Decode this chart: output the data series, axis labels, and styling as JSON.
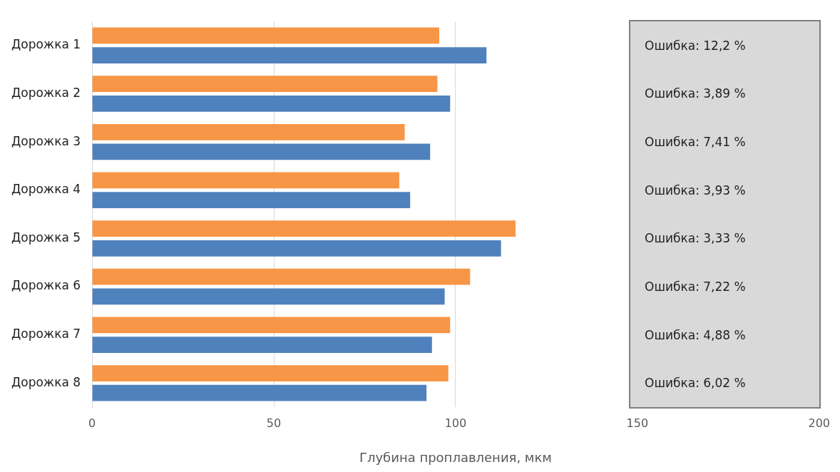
{
  "chart_data": {
    "type": "bar",
    "orientation": "horizontal",
    "xlabel": "Глубина проплавления, мкм",
    "categories": [
      "Дорожка 1",
      "Дорожка 2",
      "Дорожка 3",
      "Дорожка 4",
      "Дорожка 5",
      "Дорожка 6",
      "Дорожка 7",
      "Дорожка 8"
    ],
    "series": [
      {
        "color": "#f79646",
        "values": [
          95.5,
          95,
          86,
          84.5,
          116.5,
          104,
          98.5,
          98
        ]
      },
      {
        "color": "#4f81bd",
        "values": [
          108.5,
          98.5,
          93,
          87.5,
          112.5,
          97,
          93.5,
          92
        ]
      }
    ],
    "xlim": [
      0,
      200
    ],
    "xticks": [
      0,
      50,
      100,
      150,
      200
    ],
    "grid": "x",
    "legend": false,
    "annotations": [
      "Ошибка: 12,2 %",
      "Ошибка: 3,89 %",
      "Ошибка: 7,41 %",
      "Ошибка: 3,93 %",
      "Ошибка: 3,33 %",
      "Ошибка: 7,22 %",
      "Ошибка: 4,88 %",
      "Ошибка: 6,02 %"
    ]
  }
}
